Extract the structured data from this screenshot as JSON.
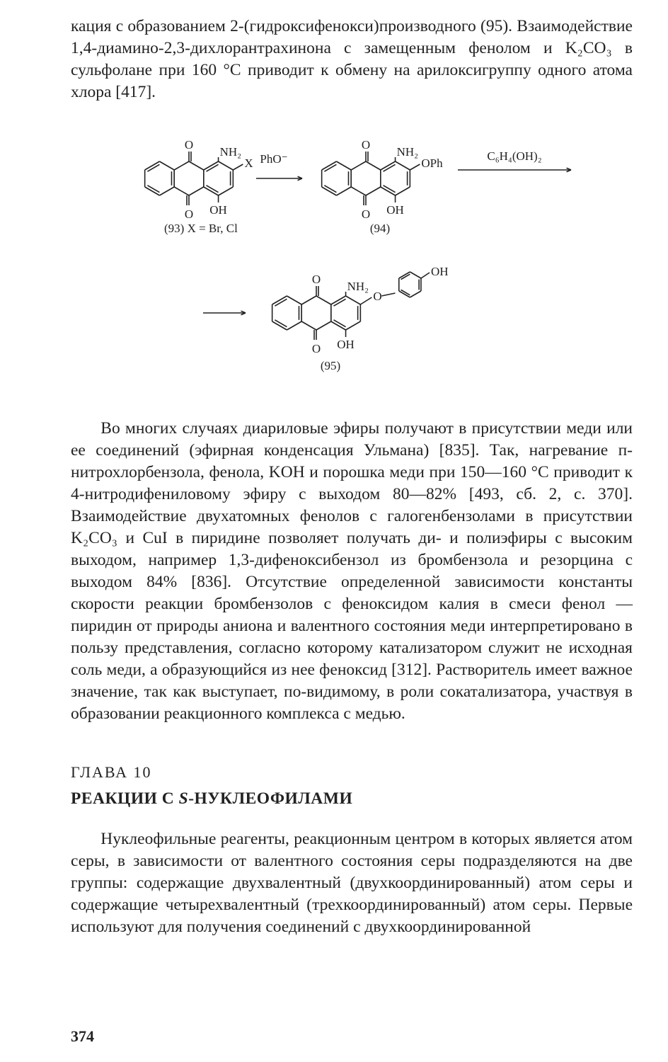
{
  "paragraphs": {
    "p1": "кация с образованием 2-(гидроксифенокси)производного (95). Взаимодействие 1,4-диамино-2,3-дихлорантрахинона с замещенным фенолом и K₂CO₃ в сульфолане при 160 °C приводит к обмену на арилоксигруппу одного атома хлора [417].",
    "p2": "Во многих случаях диариловые эфиры получают в присутствии меди или ее соединений (эфирная конденсация Ульмана) [835]. Так, нагревание п-нитрохлорбензола, фенола, KOH и порошка меди при 150—160 °C приводит к 4-нитродифениловому эфиру с выходом 80—82% [493, сб. 2, с. 370]. Взаимодействие двухатомных фенолов с галогенбензолами в присутствии K₂CO₃ и CuI в пиридине позволяет получать ди- и полиэфиры с высоким выходом, например 1,3-дифеноксибензол из бромбензола и резорцина с выходом 84% [836]. Отсутствие определенной зависимости константы скорости реакции бромбензолов с феноксидом калия в смеси фенол — пиридин от природы аниона и валентного состояния меди интерпретировано в пользу представления, согласно которому катализатором служит не исходная соль меди, а образующийся из нее феноксид [312]. Растворитель имеет важное значение, так как выступает, по-видимому, в роли сокатализатора, участвуя в образовании реакционного комплекса с медью.",
    "p3": "Нуклеофильные реагенты, реакционным центром в которых является атом серы, в зависимости от валентного состояния серы подразделяются на две группы: содержащие двухвалентный (двухкоординированный) атом серы и содержащие четырехвалентный (трехкоординированный) атом серы. Первые используют для получения соединений с двухкоординированной"
  },
  "chapter": {
    "label": "ГЛАВА 10",
    "title_prefix": "РЕАКЦИИ С ",
    "title_italic": "S",
    "title_suffix": "-НУКЛЕОФИЛАМИ"
  },
  "page_number": "374",
  "scheme": {
    "labels": {
      "nh2": "NH₂",
      "oh": "OH",
      "o": "O",
      "x": "X",
      "oph": "OPh",
      "ph_o_minus": "PhO⁻",
      "reagent": "C₆H₄(OH)₂",
      "xeq": "(93)  X = Br, Cl",
      "num94": "(94)",
      "num95": "(95)"
    },
    "colors": {
      "ink": "#222222",
      "bg": "#ffffff"
    },
    "stroke_width": 1.6,
    "font_size": 17
  }
}
